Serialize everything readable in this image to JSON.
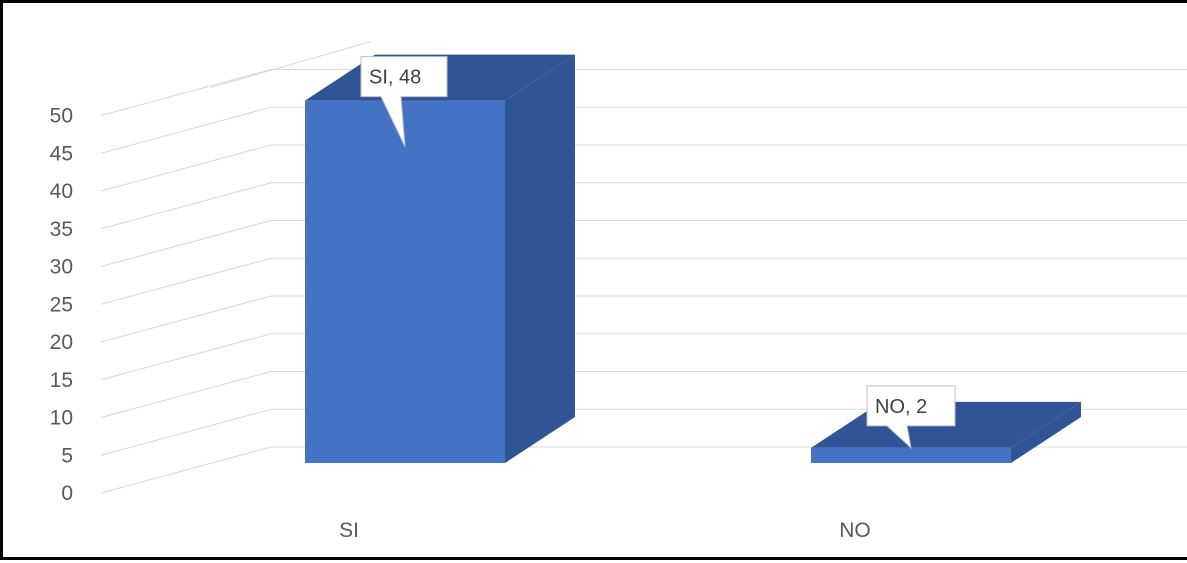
{
  "chart_data": {
    "type": "bar",
    "categories": [
      "SI",
      "NO"
    ],
    "values": [
      48,
      2
    ],
    "data_labels": [
      "SI, 48",
      "NO, 2"
    ],
    "yticks": [
      "0",
      "5",
      "10",
      "15",
      "20",
      "25",
      "30",
      "35",
      "40",
      "45",
      "50"
    ],
    "ylim": [
      0,
      50
    ],
    "title": "",
    "xlabel": "",
    "ylabel": "",
    "grid": true,
    "legend": "none",
    "style": "3d-column"
  },
  "colors": {
    "bar_front": "#4472c4",
    "bar_side": "#2f5597",
    "bar_top": "#2f5597",
    "gridline": "#d9d9d9",
    "axis_text": "#595959",
    "frame": "#000000"
  }
}
